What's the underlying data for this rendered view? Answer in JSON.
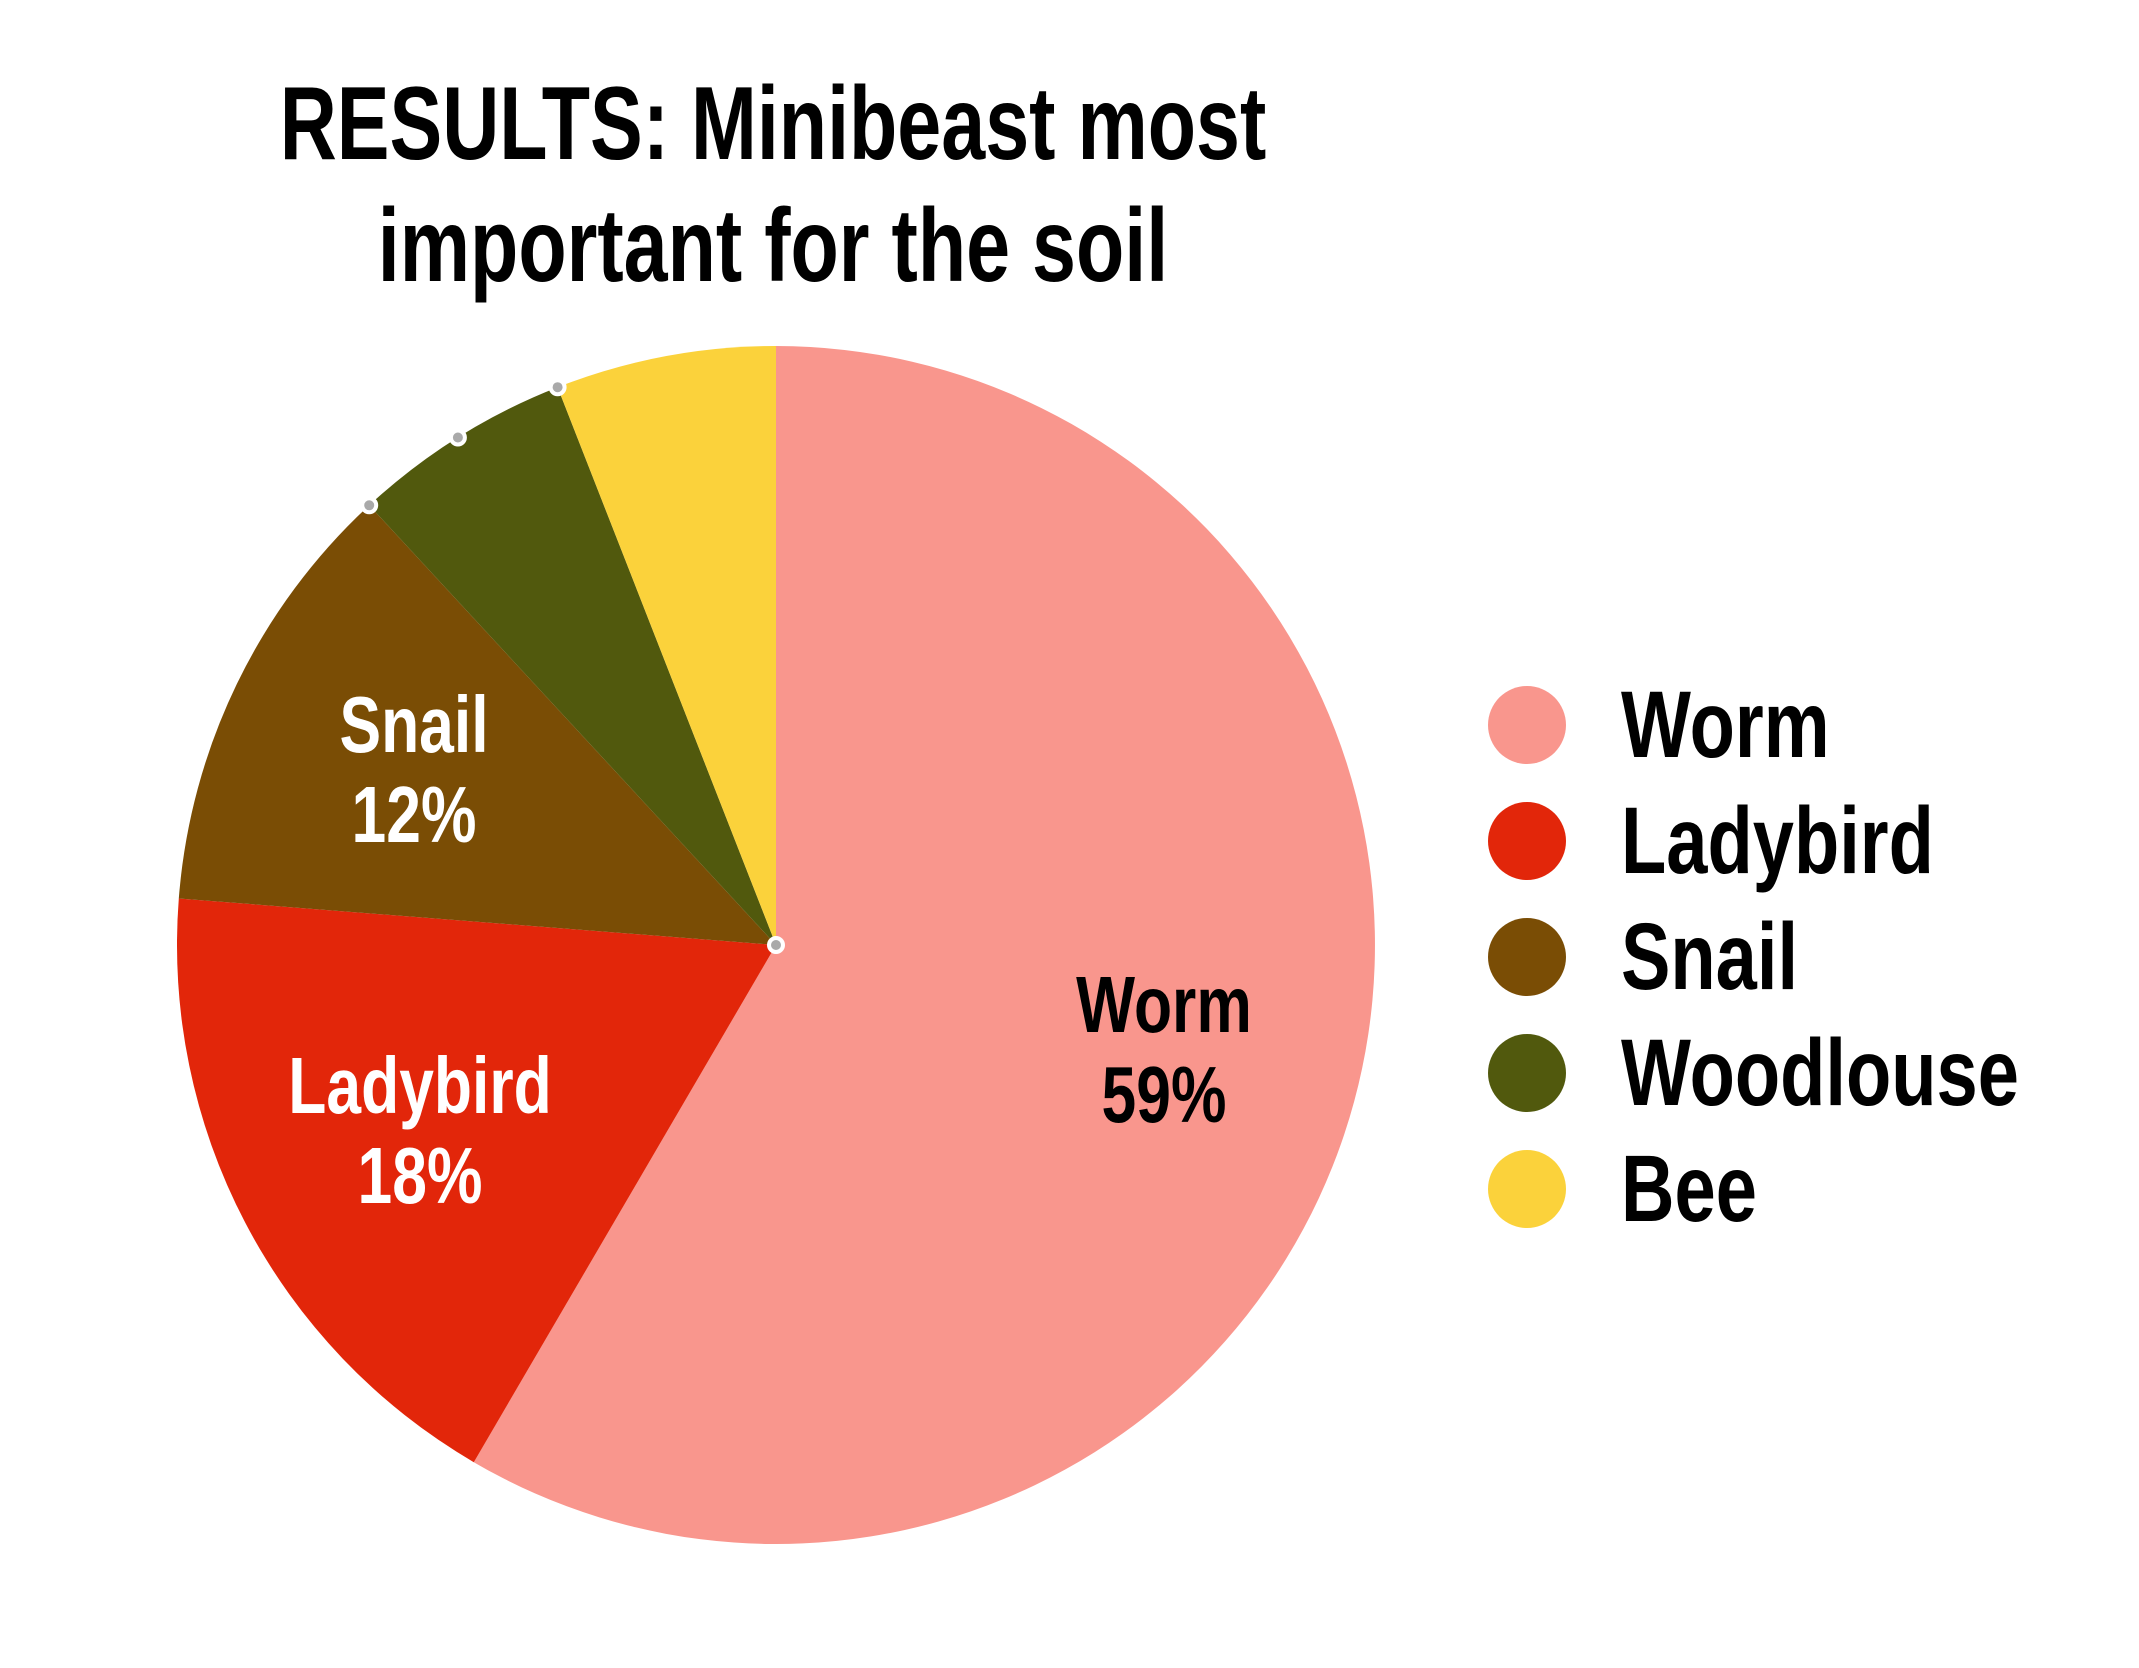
{
  "title": {
    "line1": "RESULTS: Minibeast most",
    "line2": "important for the soil"
  },
  "chart_data": {
    "type": "pie",
    "title": "RESULTS: Minibeast most important for the soil",
    "start_angle_deg": 0,
    "direction": "clockwise",
    "legend_position": "right",
    "background_color": "#FFFFFF",
    "slices": [
      {
        "name": "Worm",
        "value": 59,
        "percent_label": "59%",
        "show_label": true,
        "color": "#F9968D",
        "label_color": "#000000"
      },
      {
        "name": "Ladybird",
        "value": 18,
        "percent_label": "18%",
        "show_label": true,
        "color": "#E2260A",
        "label_color": "#FFFFFF"
      },
      {
        "name": "Snail",
        "value": 12,
        "percent_label": "12%",
        "show_label": true,
        "color": "#7A4D05",
        "label_color": "#FFFFFF"
      },
      {
        "name": "Woodlouse",
        "value": 6,
        "percent_label": "",
        "show_label": false,
        "color": "#51590D",
        "label_color": "#FFFFFF"
      },
      {
        "name": "Bee",
        "value": 6,
        "percent_label": "",
        "show_label": false,
        "color": "#FBD23B",
        "label_color": "#000000"
      }
    ],
    "selection": {
      "selected_slice": "Woodlouse",
      "handle_color": "#A9A9A9",
      "handle_ring_color": "#FFFFFF"
    }
  }
}
